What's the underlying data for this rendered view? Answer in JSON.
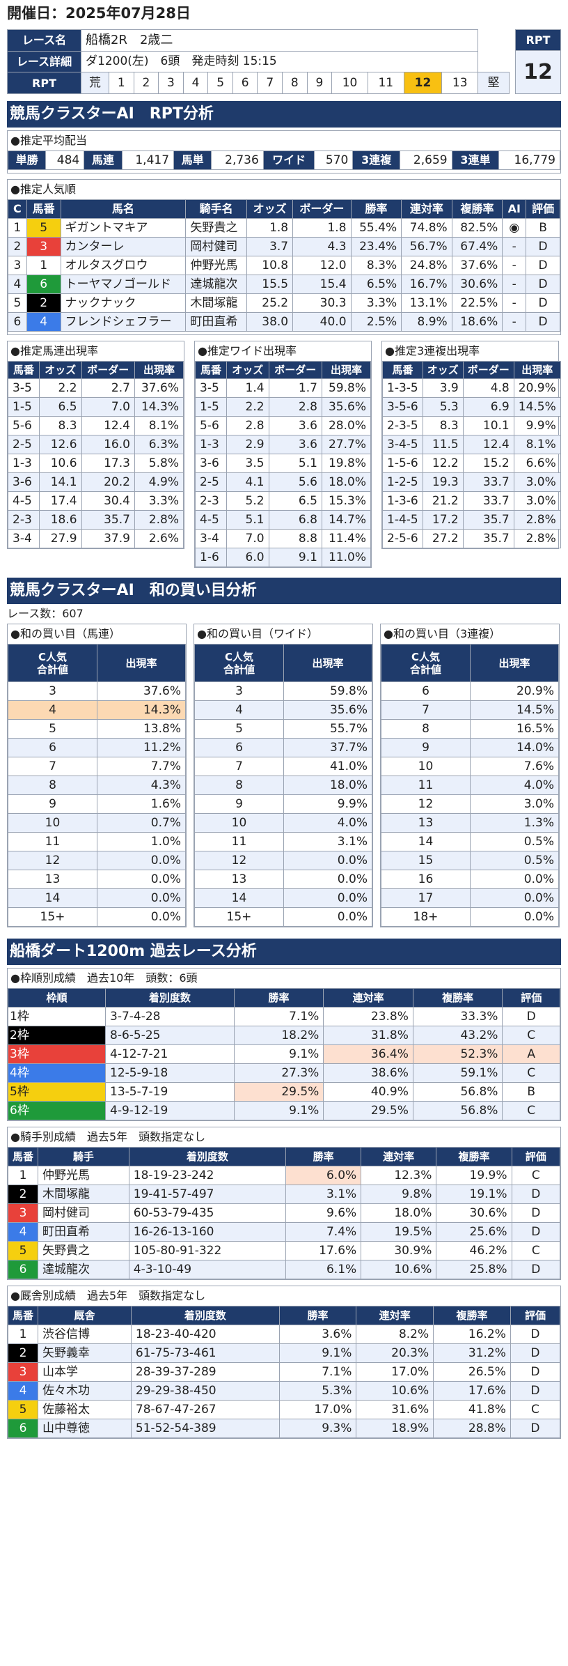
{
  "header": {
    "date": "開催日：2025年07月28日",
    "race_name_label": "レース名",
    "race_name": "船橋2R　2歳二",
    "race_detail_label": "レース詳細",
    "race_detail": "ダ1200(左)　6頭　発走時刻 15:15",
    "rpt_label": "RPT",
    "rpt_left": "荒",
    "rpt_right": "堅",
    "rpt_numbers": [
      "1",
      "2",
      "3",
      "4",
      "5",
      "6",
      "7",
      "8",
      "9",
      "10",
      "11",
      "12",
      "13"
    ],
    "rpt_selected": "12",
    "rpt_box_label": "RPT",
    "rpt_box_value": "12"
  },
  "section1": {
    "title": "競馬クラスターAI　RPT分析"
  },
  "payout": {
    "caption": "●推定平均配当",
    "items": [
      {
        "label": "単勝",
        "value": "484"
      },
      {
        "label": "馬連",
        "value": "1,417"
      },
      {
        "label": "馬単",
        "value": "2,736"
      },
      {
        "label": "ワイド",
        "value": "570"
      },
      {
        "label": "3連複",
        "value": "2,659"
      },
      {
        "label": "3連単",
        "value": "16,779"
      }
    ]
  },
  "popularity": {
    "caption": "●推定人気順",
    "headers": [
      "C",
      "馬番",
      "馬名",
      "騎手名",
      "オッズ",
      "ボーダー",
      "勝率",
      "連対率",
      "複勝率",
      "AI",
      "評価"
    ],
    "rows": [
      {
        "c": "1",
        "num": "5",
        "name": "ギガントマキア",
        "jockey": "矢野貴之",
        "odds": "1.8",
        "border": "1.8",
        "win": "55.4%",
        "place2": "74.8%",
        "place3": "82.5%",
        "ai": "◉",
        "grade": "B"
      },
      {
        "c": "2",
        "num": "3",
        "name": "カンターレ",
        "jockey": "岡村健司",
        "odds": "3.7",
        "border": "4.3",
        "win": "23.4%",
        "place2": "56.7%",
        "place3": "67.4%",
        "ai": "-",
        "grade": "D"
      },
      {
        "c": "3",
        "num": "1",
        "name": "オルタスグロウ",
        "jockey": "仲野光馬",
        "odds": "10.8",
        "border": "12.0",
        "win": "8.3%",
        "place2": "24.8%",
        "place3": "37.6%",
        "ai": "-",
        "grade": "D"
      },
      {
        "c": "4",
        "num": "6",
        "name": "トーヤマノゴールド",
        "jockey": "達城龍次",
        "odds": "15.5",
        "border": "15.4",
        "win": "6.5%",
        "place2": "16.7%",
        "place3": "30.6%",
        "ai": "-",
        "grade": "D"
      },
      {
        "c": "5",
        "num": "2",
        "name": "ナックナック",
        "jockey": "木間塚龍",
        "odds": "25.2",
        "border": "30.3",
        "win": "3.3%",
        "place2": "13.1%",
        "place3": "22.5%",
        "ai": "-",
        "grade": "D"
      },
      {
        "c": "6",
        "num": "4",
        "name": "フレンドシェフラー",
        "jockey": "町田直希",
        "odds": "38.0",
        "border": "40.0",
        "win": "2.5%",
        "place2": "8.9%",
        "place3": "18.6%",
        "ai": "-",
        "grade": "D"
      }
    ]
  },
  "combos": [
    {
      "caption": "●推定馬連出現率",
      "headers": [
        "馬番",
        "オッズ",
        "ボーダー",
        "出現率"
      ],
      "rows": [
        [
          "3-5",
          "2.2",
          "2.7",
          "37.6%"
        ],
        [
          "1-5",
          "6.5",
          "7.0",
          "14.3%"
        ],
        [
          "5-6",
          "8.3",
          "12.4",
          "8.1%"
        ],
        [
          "2-5",
          "12.6",
          "16.0",
          "6.3%"
        ],
        [
          "1-3",
          "10.6",
          "17.3",
          "5.8%"
        ],
        [
          "3-6",
          "14.1",
          "20.2",
          "4.9%"
        ],
        [
          "4-5",
          "17.4",
          "30.4",
          "3.3%"
        ],
        [
          "2-3",
          "18.6",
          "35.7",
          "2.8%"
        ],
        [
          "3-4",
          "27.9",
          "37.9",
          "2.6%"
        ]
      ]
    },
    {
      "caption": "●推定ワイド出現率",
      "headers": [
        "馬番",
        "オッズ",
        "ボーダー",
        "出現率"
      ],
      "rows": [
        [
          "3-5",
          "1.4",
          "1.7",
          "59.8%"
        ],
        [
          "1-5",
          "2.2",
          "2.8",
          "35.6%"
        ],
        [
          "5-6",
          "2.8",
          "3.6",
          "28.0%"
        ],
        [
          "1-3",
          "2.9",
          "3.6",
          "27.7%"
        ],
        [
          "3-6",
          "3.5",
          "5.1",
          "19.8%"
        ],
        [
          "2-5",
          "4.1",
          "5.6",
          "18.0%"
        ],
        [
          "2-3",
          "5.2",
          "6.5",
          "15.3%"
        ],
        [
          "4-5",
          "5.1",
          "6.8",
          "14.7%"
        ],
        [
          "3-4",
          "7.0",
          "8.8",
          "11.4%"
        ],
        [
          "1-6",
          "6.0",
          "9.1",
          "11.0%"
        ]
      ]
    },
    {
      "caption": "●推定3連複出現率",
      "headers": [
        "馬番",
        "オッズ",
        "ボーダー",
        "出現率"
      ],
      "rows": [
        [
          "1-3-5",
          "3.9",
          "4.8",
          "20.9%"
        ],
        [
          "3-5-6",
          "5.3",
          "6.9",
          "14.5%"
        ],
        [
          "2-3-5",
          "8.3",
          "10.1",
          "9.9%"
        ],
        [
          "3-4-5",
          "11.5",
          "12.4",
          "8.1%"
        ],
        [
          "1-5-6",
          "12.2",
          "15.2",
          "6.6%"
        ],
        [
          "1-2-5",
          "19.3",
          "33.7",
          "3.0%"
        ],
        [
          "1-3-6",
          "21.2",
          "33.7",
          "3.0%"
        ],
        [
          "1-4-5",
          "17.2",
          "35.7",
          "2.8%"
        ],
        [
          "2-5-6",
          "27.2",
          "35.7",
          "2.8%"
        ]
      ]
    }
  ],
  "section2": {
    "title": "競馬クラスターAI　和の買い目分析",
    "race_count": "レース数：607"
  },
  "sums": [
    {
      "caption": "●和の買い目（馬連）",
      "h1": "C人気",
      "h2": "合計値",
      "h3": "出現率",
      "rows": [
        [
          "3",
          "37.6%"
        ],
        [
          "4",
          "14.3%"
        ],
        [
          "5",
          "13.8%"
        ],
        [
          "6",
          "11.2%"
        ],
        [
          "7",
          "7.7%"
        ],
        [
          "8",
          "4.3%"
        ],
        [
          "9",
          "1.6%"
        ],
        [
          "10",
          "0.7%"
        ],
        [
          "11",
          "1.0%"
        ],
        [
          "12",
          "0.0%"
        ],
        [
          "13",
          "0.0%"
        ],
        [
          "14",
          "0.0%"
        ],
        [
          "15+",
          "0.0%"
        ]
      ]
    },
    {
      "caption": "●和の買い目（ワイド）",
      "h1": "C人気",
      "h2": "合計値",
      "h3": "出現率",
      "rows": [
        [
          "3",
          "59.8%"
        ],
        [
          "4",
          "35.6%"
        ],
        [
          "5",
          "55.7%"
        ],
        [
          "6",
          "37.7%"
        ],
        [
          "7",
          "41.0%"
        ],
        [
          "8",
          "18.0%"
        ],
        [
          "9",
          "9.9%"
        ],
        [
          "10",
          "4.0%"
        ],
        [
          "11",
          "3.1%"
        ],
        [
          "12",
          "0.0%"
        ],
        [
          "13",
          "0.0%"
        ],
        [
          "14",
          "0.0%"
        ],
        [
          "15+",
          "0.0%"
        ]
      ]
    },
    {
      "caption": "●和の買い目（3連複）",
      "h1": "C人気",
      "h2": "合計値",
      "h3": "出現率",
      "rows": [
        [
          "6",
          "20.9%"
        ],
        [
          "7",
          "14.5%"
        ],
        [
          "8",
          "16.5%"
        ],
        [
          "9",
          "14.0%"
        ],
        [
          "10",
          "7.6%"
        ],
        [
          "11",
          "4.0%"
        ],
        [
          "12",
          "3.0%"
        ],
        [
          "13",
          "1.3%"
        ],
        [
          "14",
          "0.5%"
        ],
        [
          "15",
          "0.5%"
        ],
        [
          "16",
          "0.0%"
        ],
        [
          "17",
          "0.0%"
        ],
        [
          "18+",
          "0.0%"
        ]
      ]
    }
  ],
  "section3": {
    "title": "船橋ダート1200m 過去レース分析"
  },
  "gate": {
    "caption": "●枠順別成績　過去10年　頭数：6頭",
    "headers": [
      "枠順",
      "着別度数",
      "勝率",
      "連対率",
      "複勝率",
      "評価"
    ],
    "rows": [
      [
        "1枠",
        "3-7-4-28",
        "7.1%",
        "23.8%",
        "33.3%",
        "D"
      ],
      [
        "2枠",
        "8-6-5-25",
        "18.2%",
        "31.8%",
        "43.2%",
        "C"
      ],
      [
        "3枠",
        "4-12-7-21",
        "9.1%",
        "36.4%",
        "52.3%",
        "A"
      ],
      [
        "4枠",
        "12-5-9-18",
        "27.3%",
        "38.6%",
        "59.1%",
        "C"
      ],
      [
        "5枠",
        "13-5-7-19",
        "29.5%",
        "40.9%",
        "56.8%",
        "B"
      ],
      [
        "6枠",
        "4-9-12-19",
        "9.1%",
        "29.5%",
        "56.8%",
        "C"
      ]
    ]
  },
  "jockey": {
    "caption": "●騎手別成績　過去5年　頭数指定なし",
    "headers": [
      "馬番",
      "騎手",
      "着別度数",
      "勝率",
      "連対率",
      "複勝率",
      "評価"
    ],
    "rows": [
      [
        "1",
        "仲野光馬",
        "18-19-23-242",
        "6.0%",
        "12.3%",
        "19.9%",
        "C"
      ],
      [
        "2",
        "木間塚龍",
        "19-41-57-497",
        "3.1%",
        "9.8%",
        "19.1%",
        "D"
      ],
      [
        "3",
        "岡村健司",
        "60-53-79-435",
        "9.6%",
        "18.0%",
        "30.6%",
        "D"
      ],
      [
        "4",
        "町田直希",
        "16-26-13-160",
        "7.4%",
        "19.5%",
        "25.6%",
        "D"
      ],
      [
        "5",
        "矢野貴之",
        "105-80-91-322",
        "17.6%",
        "30.9%",
        "46.2%",
        "C"
      ],
      [
        "6",
        "達城龍次",
        "4-3-10-49",
        "6.1%",
        "10.6%",
        "25.8%",
        "D"
      ]
    ]
  },
  "trainer": {
    "caption": "●厩舎別成績　過去5年　頭数指定なし",
    "headers": [
      "馬番",
      "厩舎",
      "着別度数",
      "勝率",
      "連対率",
      "複勝率",
      "評価"
    ],
    "rows": [
      [
        "1",
        "渋谷信博",
        "18-23-40-420",
        "3.6%",
        "8.2%",
        "16.2%",
        "D"
      ],
      [
        "2",
        "矢野義幸",
        "61-75-73-461",
        "9.1%",
        "20.3%",
        "31.2%",
        "D"
      ],
      [
        "3",
        "山本学",
        "28-39-37-289",
        "7.1%",
        "17.0%",
        "26.5%",
        "D"
      ],
      [
        "4",
        "佐々木功",
        "29-29-38-450",
        "5.3%",
        "10.6%",
        "17.6%",
        "D"
      ],
      [
        "5",
        "佐藤裕太",
        "78-67-47-267",
        "17.0%",
        "31.6%",
        "41.8%",
        "C"
      ],
      [
        "6",
        "山中尊徳",
        "51-52-54-389",
        "9.3%",
        "18.9%",
        "28.8%",
        "D"
      ]
    ]
  }
}
